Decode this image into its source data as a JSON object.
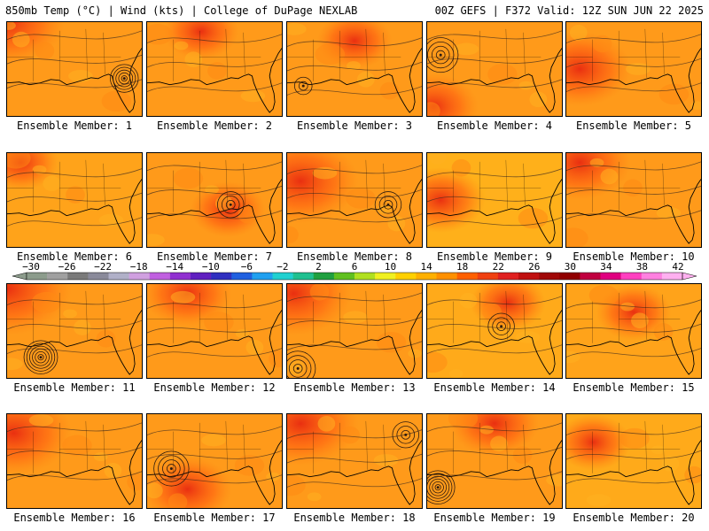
{
  "header": {
    "left": "850mb Temp (°C) | Wind (kts) | College of DuPage NEXLAB",
    "right": "00Z GEFS | F372 Valid: 12Z SUN JUN 22 2025"
  },
  "colorbar": {
    "labels": [
      "-30",
      "-26",
      "-22",
      "-18",
      "-14",
      "-10",
      "-6",
      "-2",
      "2",
      "6",
      "10",
      "14",
      "18",
      "22",
      "26",
      "30",
      "34",
      "38",
      "42"
    ],
    "colors": [
      "#8c9c8c",
      "#a0a0a0",
      "#7a7a7a",
      "#8a8a9a",
      "#b0b0c8",
      "#d0a0e0",
      "#c060e0",
      "#9030d0",
      "#6020c0",
      "#3030c0",
      "#2060e0",
      "#20a0f0",
      "#20d0d0",
      "#20c090",
      "#20a040",
      "#60c020",
      "#b0e020",
      "#f0f020",
      "#ffd000",
      "#ffb000",
      "#ff9000",
      "#ff6000",
      "#f04010",
      "#e02020",
      "#c01010",
      "#a00808",
      "#900000",
      "#c00040",
      "#e00080",
      "#ff40c0",
      "#ff80e0",
      "#ffb0f0"
    ]
  },
  "panels": [
    {
      "label": "Ensemble Member: 1",
      "base": "#ff9a1a",
      "warm": [
        0.0,
        0.0,
        0.3
      ],
      "lows": [
        [
          0.87,
          0.6,
          5
        ]
      ]
    },
    {
      "label": "Ensemble Member: 2",
      "base": "#ff9a1a",
      "warm": [
        0.4,
        0.1,
        0.15
      ],
      "lows": []
    },
    {
      "label": "Ensemble Member: 3",
      "base": "#ff9a1a",
      "warm": [
        0.5,
        0.2,
        0.15
      ],
      "lows": [
        [
          0.12,
          0.68,
          2
        ]
      ]
    },
    {
      "label": "Ensemble Member: 4",
      "base": "#ff9a1a",
      "warm": [
        0.05,
        0.9,
        0.2
      ],
      "lows": [
        [
          0.1,
          0.35,
          4
        ]
      ]
    },
    {
      "label": "Ensemble Member: 5",
      "base": "#ff9a1a",
      "warm": [
        0.1,
        0.5,
        0.25
      ],
      "lows": []
    },
    {
      "label": "Ensemble Member: 6",
      "base": "#ffa31a",
      "warm": [
        0.1,
        0.1,
        0.15
      ],
      "lows": []
    },
    {
      "label": "Ensemble Member: 7",
      "base": "#ff9a1a",
      "warm": [
        0.6,
        0.6,
        0.15
      ],
      "lows": [
        [
          0.62,
          0.55,
          3
        ]
      ]
    },
    {
      "label": "Ensemble Member: 8",
      "base": "#ff9a1a",
      "warm": [
        0.1,
        0.3,
        0.3
      ],
      "lows": [
        [
          0.75,
          0.55,
          3
        ]
      ]
    },
    {
      "label": "Ensemble Member: 9",
      "base": "#ffb01a",
      "warm": [
        0.1,
        0.5,
        0.2
      ],
      "lows": []
    },
    {
      "label": "Ensemble Member: 10",
      "base": "#ff9a1a",
      "warm": [
        0.1,
        0.1,
        0.25
      ],
      "lows": []
    },
    {
      "label": "Ensemble Member: 11",
      "base": "#ff9a1a",
      "warm": [
        0.0,
        0.05,
        0.35
      ],
      "lows": [
        [
          0.25,
          0.78,
          6
        ]
      ]
    },
    {
      "label": "Ensemble Member: 12",
      "base": "#ff9a1a",
      "warm": [
        0.3,
        0.1,
        0.2
      ],
      "lows": []
    },
    {
      "label": "Ensemble Member: 13",
      "base": "#ff9a1a",
      "warm": [
        0.05,
        0.1,
        0.3
      ],
      "lows": [
        [
          0.08,
          0.9,
          4
        ]
      ]
    },
    {
      "label": "Ensemble Member: 14",
      "base": "#ffaa1a",
      "warm": [
        0.6,
        0.2,
        0.15
      ],
      "lows": [
        [
          0.55,
          0.45,
          3
        ]
      ]
    },
    {
      "label": "Ensemble Member: 15",
      "base": "#ffa31a",
      "warm": [
        0.5,
        0.3,
        0.15
      ],
      "lows": []
    },
    {
      "label": "Ensemble Member: 16",
      "base": "#ff9a1a",
      "warm": [
        0.05,
        0.2,
        0.3
      ],
      "lows": []
    },
    {
      "label": "Ensemble Member: 17",
      "base": "#ff9a1a",
      "warm": [
        0.3,
        0.8,
        0.2
      ],
      "lows": [
        [
          0.18,
          0.58,
          4
        ]
      ]
    },
    {
      "label": "Ensemble Member: 18",
      "base": "#ff9a1a",
      "warm": [
        0.1,
        0.1,
        0.3
      ],
      "lows": [
        [
          0.88,
          0.22,
          3
        ]
      ]
    },
    {
      "label": "Ensemble Member: 19",
      "base": "#ff9a1a",
      "warm": [
        0.5,
        0.1,
        0.2
      ],
      "lows": [
        [
          0.08,
          0.78,
          6
        ]
      ]
    },
    {
      "label": "Ensemble Member: 20",
      "base": "#ffaa1a",
      "warm": [
        0.2,
        0.3,
        0.15
      ],
      "lows": []
    }
  ]
}
